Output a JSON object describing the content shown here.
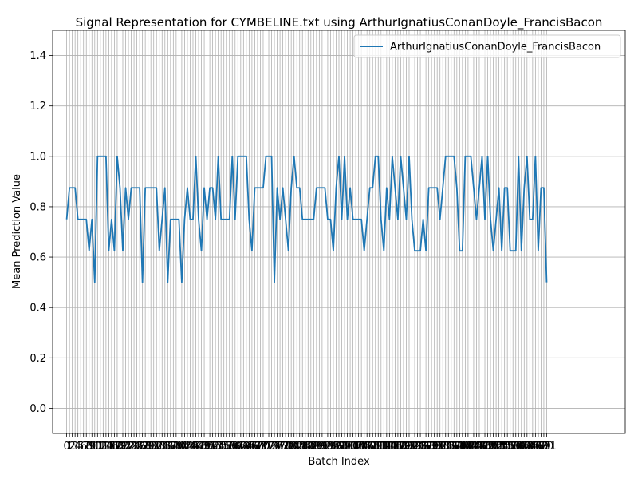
{
  "chart_data": {
    "type": "line",
    "title": "Signal Representation for CYMBELINE.txt using ArthurIgnatiusConanDoyle_FrancisBacon",
    "xlabel": "Batch Index",
    "ylabel": "Mean Prediction Value",
    "ylim": [
      -0.1,
      1.5
    ],
    "xlim": [
      -5,
      199
    ],
    "yticks": [
      0.0,
      0.2,
      0.4,
      0.6,
      0.8,
      1.0,
      1.2,
      1.4
    ],
    "grid": true,
    "legend_position": "top-right",
    "series": [
      {
        "name": "ArthurIgnatiusConanDoyle_FrancisBacon",
        "color": "#1f77b4",
        "values": [
          0.75,
          0.875,
          0.875,
          0.875,
          0.75,
          0.75,
          0.75,
          0.75,
          0.625,
          0.75,
          0.5,
          1.0,
          1.0,
          1.0,
          1.0,
          0.625,
          0.75,
          0.625,
          1.0,
          0.875,
          0.625,
          0.875,
          0.75,
          0.875,
          0.875,
          0.875,
          0.875,
          0.5,
          0.875,
          0.875,
          0.875,
          0.875,
          0.875,
          0.625,
          0.75,
          0.875,
          0.5,
          0.75,
          0.75,
          0.75,
          0.75,
          0.5,
          0.75,
          0.875,
          0.75,
          0.75,
          1.0,
          0.75,
          0.625,
          0.875,
          0.75,
          0.875,
          0.875,
          0.75,
          1.0,
          0.75,
          0.75,
          0.75,
          0.75,
          1.0,
          0.75,
          1.0,
          1.0,
          1.0,
          1.0,
          0.75,
          0.625,
          0.875,
          0.875,
          0.875,
          0.875,
          1.0,
          1.0,
          1.0,
          0.5,
          0.875,
          0.75,
          0.875,
          0.75,
          0.625,
          0.875,
          1.0,
          0.875,
          0.875,
          0.75,
          0.75,
          0.75,
          0.75,
          0.75,
          0.875,
          0.875,
          0.875,
          0.875,
          0.75,
          0.75,
          0.625,
          0.875,
          1.0,
          0.75,
          1.0,
          0.75,
          0.875,
          0.75,
          0.75,
          0.75,
          0.75,
          0.625,
          0.75,
          0.875,
          0.875,
          1.0,
          1.0,
          0.75,
          0.625,
          0.875,
          0.75,
          1.0,
          0.875,
          0.75,
          1.0,
          0.875,
          0.75,
          1.0,
          0.75,
          0.625,
          0.625,
          0.625,
          0.75,
          0.625,
          0.875,
          0.875,
          0.875,
          0.875,
          0.75,
          0.875,
          1.0,
          1.0,
          1.0,
          1.0,
          0.875,
          0.625,
          0.625,
          1.0,
          1.0,
          1.0,
          0.875,
          0.75,
          0.875,
          1.0,
          0.75,
          1.0,
          0.75,
          0.625,
          0.75,
          0.875,
          0.625,
          0.875,
          0.875,
          0.625,
          0.625,
          0.625,
          1.0,
          0.625,
          0.875,
          1.0,
          0.75,
          0.75,
          1.0,
          0.625,
          0.875,
          0.875,
          0.5
        ]
      }
    ]
  }
}
